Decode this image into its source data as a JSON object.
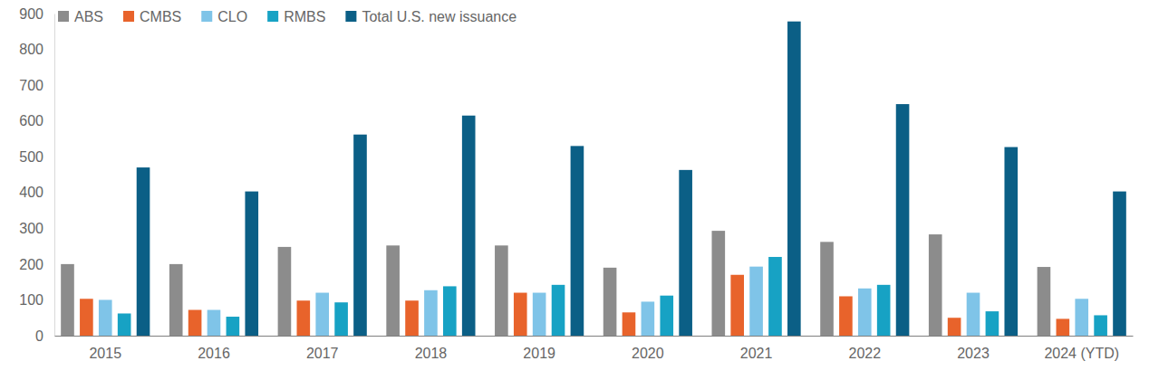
{
  "chart_data": {
    "type": "bar",
    "categories": [
      "2015",
      "2016",
      "2017",
      "2018",
      "2019",
      "2020",
      "2021",
      "2022",
      "2023",
      "2024 (YTD)"
    ],
    "series": [
      {
        "name": "ABS",
        "color": "#8c8c8c",
        "values": [
          200,
          200,
          248,
          252,
          252,
          190,
          293,
          262,
          283,
          192
        ]
      },
      {
        "name": "CMBS",
        "color": "#e8632b",
        "values": [
          103,
          72,
          98,
          98,
          120,
          65,
          170,
          110,
          50,
          47
        ]
      },
      {
        "name": "CLO",
        "color": "#7fc4e8",
        "values": [
          100,
          72,
          120,
          127,
          120,
          95,
          193,
          132,
          120,
          103
        ]
      },
      {
        "name": "RMBS",
        "color": "#17a2c4",
        "values": [
          62,
          53,
          93,
          138,
          142,
          112,
          220,
          142,
          68,
          57
        ]
      },
      {
        "name": "Total U.S. new issuance",
        "color": "#0b5f86",
        "values": [
          470,
          403,
          562,
          615,
          530,
          463,
          878,
          647,
          527,
          403
        ]
      }
    ],
    "ylim": [
      0,
      900
    ],
    "yticks": [
      0,
      100,
      200,
      300,
      400,
      500,
      600,
      700,
      800,
      900
    ],
    "grid": false,
    "legend": "top-left"
  }
}
